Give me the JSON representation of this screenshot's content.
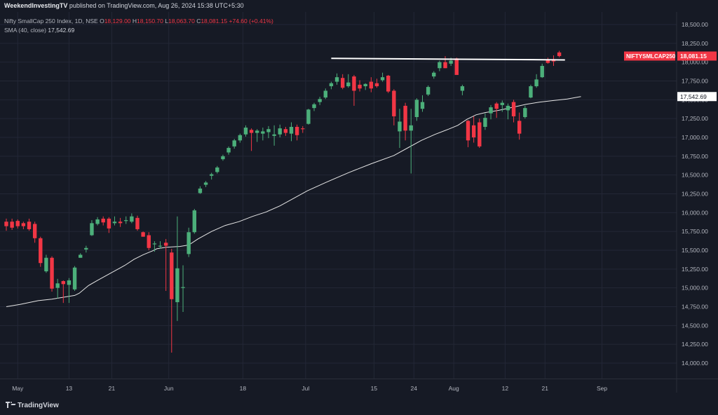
{
  "header": {
    "publisher": "WeekendInvestingTV",
    "published_text": "published on TradingView.com, Aug 26, 2024 15:38 UTC+5:30"
  },
  "legend": {
    "symbol_line": "Nifty SmallCap 250 Index, 1D, NSE",
    "o_label": "O",
    "o_value": "18,129.00",
    "h_label": "H",
    "h_value": "18,150.70",
    "l_label": "L",
    "l_value": "18,063.70",
    "c_label": "C",
    "c_value": "18,081.15",
    "change": "+74.60 (+0.41%)",
    "sma_label": "SMA (40, close)",
    "sma_value": "17,542.69"
  },
  "footer": {
    "brand": "TradingView"
  },
  "colors": {
    "background": "#161a25",
    "up": "#4caf7a",
    "down": "#f23645",
    "sma": "#e6e6e6",
    "grid": "#232736",
    "axis_text": "#b2b5be",
    "trendline": "#ffffff"
  },
  "chart_data": {
    "type": "candlestick",
    "y_ticks": [
      "18,500.00",
      "18,250.00",
      "18,000.00",
      "17,750.00",
      "17,500.00",
      "17,250.00",
      "17,000.00",
      "16,750.00",
      "16,500.00",
      "16,250.00",
      "16,000.00",
      "15,750.00",
      "15,500.00",
      "15,250.00",
      "15,000.00",
      "14,750.00",
      "14,500.00",
      "14,250.00",
      "14,000.00"
    ],
    "y_tick_values": [
      18500,
      18250,
      18000,
      17750,
      17500,
      17250,
      17000,
      16750,
      16500,
      16250,
      16000,
      15750,
      15500,
      15250,
      15000,
      14750,
      14500,
      14250,
      14000
    ],
    "ylim": [
      13800,
      18600
    ],
    "x_ticks": [
      "May",
      "13",
      "21",
      "Jun",
      "18",
      "Jul",
      "15",
      "24",
      "Aug",
      "12",
      "21",
      "Sep"
    ],
    "x_tick_index": [
      2,
      11,
      18.5,
      28.5,
      41.5,
      52.5,
      64.5,
      71.5,
      78.5,
      87.5,
      94.5,
      104.5
    ],
    "grid": true,
    "price_label": {
      "symbol": "NIFTYSMLCAP250",
      "value": "18,081.15",
      "price": 18081.15
    },
    "sma_label": {
      "value": "17,542.69",
      "price": 17542.69
    },
    "trendline": {
      "start_index": 57,
      "end_index": 98,
      "start_price": 18050,
      "end_price": 18030
    },
    "candles": [
      {
        "o": 15880,
        "h": 15920,
        "l": 15760,
        "c": 15820
      },
      {
        "o": 15880,
        "h": 15920,
        "l": 15770,
        "c": 15800
      },
      {
        "o": 15890,
        "h": 15910,
        "l": 15790,
        "c": 15820
      },
      {
        "o": 15860,
        "h": 15880,
        "l": 15780,
        "c": 15820
      },
      {
        "o": 15880,
        "h": 15920,
        "l": 15760,
        "c": 15780
      },
      {
        "o": 15850,
        "h": 15880,
        "l": 15600,
        "c": 15660
      },
      {
        "o": 15660,
        "h": 15680,
        "l": 15280,
        "c": 15330
      },
      {
        "o": 15220,
        "h": 15440,
        "l": 15200,
        "c": 15400
      },
      {
        "o": 15400,
        "h": 15420,
        "l": 14950,
        "c": 14990
      },
      {
        "o": 15000,
        "h": 15120,
        "l": 14860,
        "c": 15060
      },
      {
        "o": 15090,
        "h": 15100,
        "l": 14800,
        "c": 15050
      },
      {
        "o": 15040,
        "h": 15130,
        "l": 14800,
        "c": 15100
      },
      {
        "o": 14980,
        "h": 15290,
        "l": 14960,
        "c": 15270
      },
      {
        "o": 15400,
        "h": 15460,
        "l": 15400,
        "c": 15440
      },
      {
        "o": 15510,
        "h": 15560,
        "l": 15470,
        "c": 15530
      },
      {
        "o": 15700,
        "h": 15900,
        "l": 15690,
        "c": 15860
      },
      {
        "o": 15850,
        "h": 15940,
        "l": 15830,
        "c": 15910
      },
      {
        "o": 15920,
        "h": 15950,
        "l": 15830,
        "c": 15870
      },
      {
        "o": 15920,
        "h": 15940,
        "l": 15730,
        "c": 15790
      },
      {
        "o": 15860,
        "h": 15950,
        "l": 15830,
        "c": 15880
      },
      {
        "o": 15880,
        "h": 15930,
        "l": 15810,
        "c": 15860
      },
      {
        "o": 15890,
        "h": 15950,
        "l": 15850,
        "c": 15900
      },
      {
        "o": 15880,
        "h": 15990,
        "l": 15860,
        "c": 15950
      },
      {
        "o": 15930,
        "h": 15960,
        "l": 15760,
        "c": 15780
      },
      {
        "o": 15740,
        "h": 15750,
        "l": 15680,
        "c": 15680
      },
      {
        "o": 15700,
        "h": 15740,
        "l": 15500,
        "c": 15530
      },
      {
        "o": 15580,
        "h": 15620,
        "l": 15480,
        "c": 15590
      },
      {
        "o": 15560,
        "h": 15620,
        "l": 15520,
        "c": 15560
      },
      {
        "o": 15600,
        "h": 15650,
        "l": 14960,
        "c": 15560
      },
      {
        "o": 15470,
        "h": 15520,
        "l": 14140,
        "c": 14850
      },
      {
        "o": 14810,
        "h": 15950,
        "l": 14560,
        "c": 15260
      },
      {
        "o": 15000,
        "h": 15300,
        "l": 14680,
        "c": 15010
      },
      {
        "o": 15450,
        "h": 15800,
        "l": 15410,
        "c": 15740
      },
      {
        "o": 15740,
        "h": 16050,
        "l": 15720,
        "c": 16030
      },
      {
        "o": 16260,
        "h": 16350,
        "l": 16250,
        "c": 16320
      },
      {
        "o": 16370,
        "h": 16420,
        "l": 16340,
        "c": 16400
      },
      {
        "o": 16490,
        "h": 16530,
        "l": 16440,
        "c": 16510
      },
      {
        "o": 16540,
        "h": 16620,
        "l": 16520,
        "c": 16600
      },
      {
        "o": 16710,
        "h": 16770,
        "l": 16690,
        "c": 16750
      },
      {
        "o": 16800,
        "h": 16880,
        "l": 16770,
        "c": 16860
      },
      {
        "o": 16880,
        "h": 16980,
        "l": 16850,
        "c": 16960
      },
      {
        "o": 16960,
        "h": 17050,
        "l": 16930,
        "c": 17030
      },
      {
        "o": 17040,
        "h": 17160,
        "l": 17010,
        "c": 17130
      },
      {
        "o": 17100,
        "h": 17120,
        "l": 16820,
        "c": 17060
      },
      {
        "o": 17060,
        "h": 17110,
        "l": 16940,
        "c": 17090
      },
      {
        "o": 17050,
        "h": 17130,
        "l": 16960,
        "c": 17080
      },
      {
        "o": 17070,
        "h": 17150,
        "l": 16990,
        "c": 17110
      },
      {
        "o": 17020,
        "h": 17160,
        "l": 16890,
        "c": 17040
      },
      {
        "o": 17040,
        "h": 17170,
        "l": 17000,
        "c": 17120
      },
      {
        "o": 17110,
        "h": 17140,
        "l": 17020,
        "c": 17060
      },
      {
        "o": 17050,
        "h": 17200,
        "l": 16950,
        "c": 17140
      },
      {
        "o": 17140,
        "h": 17170,
        "l": 16960,
        "c": 17030
      },
      {
        "o": 17120,
        "h": 17150,
        "l": 17060,
        "c": 17110
      },
      {
        "o": 17180,
        "h": 17380,
        "l": 17170,
        "c": 17370
      },
      {
        "o": 17390,
        "h": 17460,
        "l": 17350,
        "c": 17440
      },
      {
        "o": 17470,
        "h": 17540,
        "l": 17430,
        "c": 17510
      },
      {
        "o": 17530,
        "h": 17650,
        "l": 17510,
        "c": 17620
      },
      {
        "o": 17680,
        "h": 17740,
        "l": 17640,
        "c": 17720
      },
      {
        "o": 17740,
        "h": 17850,
        "l": 17700,
        "c": 17800
      },
      {
        "o": 17790,
        "h": 17840,
        "l": 17640,
        "c": 17660
      },
      {
        "o": 17680,
        "h": 17840,
        "l": 17660,
        "c": 17730
      },
      {
        "o": 17810,
        "h": 17830,
        "l": 17420,
        "c": 17620
      },
      {
        "o": 17700,
        "h": 17760,
        "l": 17610,
        "c": 17650
      },
      {
        "o": 17680,
        "h": 17720,
        "l": 17630,
        "c": 17710
      },
      {
        "o": 17740,
        "h": 17800,
        "l": 17600,
        "c": 17650
      },
      {
        "o": 17720,
        "h": 17780,
        "l": 17660,
        "c": 17680
      },
      {
        "o": 17760,
        "h": 17860,
        "l": 17740,
        "c": 17800
      },
      {
        "o": 17820,
        "h": 17830,
        "l": 17590,
        "c": 17610
      },
      {
        "o": 17620,
        "h": 17640,
        "l": 17160,
        "c": 17280
      },
      {
        "o": 17080,
        "h": 17380,
        "l": 16860,
        "c": 17210
      },
      {
        "o": 17420,
        "h": 17460,
        "l": 16960,
        "c": 17090
      },
      {
        "o": 17090,
        "h": 17380,
        "l": 16520,
        "c": 17160
      },
      {
        "o": 17270,
        "h": 17520,
        "l": 17220,
        "c": 17500
      },
      {
        "o": 17380,
        "h": 17560,
        "l": 17340,
        "c": 17470
      },
      {
        "o": 17570,
        "h": 17690,
        "l": 17550,
        "c": 17670
      },
      {
        "o": 17810,
        "h": 17880,
        "l": 17780,
        "c": 17860
      },
      {
        "o": 17920,
        "h": 18020,
        "l": 17880,
        "c": 18000
      },
      {
        "o": 18000,
        "h": 18080,
        "l": 17920,
        "c": 17920
      },
      {
        "o": 17980,
        "h": 18060,
        "l": 17950,
        "c": 18020
      },
      {
        "o": 18050,
        "h": 18060,
        "l": 17850,
        "c": 17830
      },
      {
        "o": 17620,
        "h": 17700,
        "l": 17560,
        "c": 17680
      },
      {
        "o": 17220,
        "h": 17230,
        "l": 16870,
        "c": 16960
      },
      {
        "o": 17160,
        "h": 17280,
        "l": 16930,
        "c": 17000
      },
      {
        "o": 17200,
        "h": 17250,
        "l": 16860,
        "c": 16880
      },
      {
        "o": 17140,
        "h": 17320,
        "l": 17100,
        "c": 17260
      },
      {
        "o": 17320,
        "h": 17430,
        "l": 17240,
        "c": 17400
      },
      {
        "o": 17450,
        "h": 17470,
        "l": 17260,
        "c": 17380
      },
      {
        "o": 17430,
        "h": 17490,
        "l": 17340,
        "c": 17460
      },
      {
        "o": 17360,
        "h": 17450,
        "l": 17240,
        "c": 17420
      },
      {
        "o": 17470,
        "h": 17500,
        "l": 17200,
        "c": 17280
      },
      {
        "o": 17220,
        "h": 17330,
        "l": 16970,
        "c": 17050
      },
      {
        "o": 17270,
        "h": 17420,
        "l": 17250,
        "c": 17390
      },
      {
        "o": 17530,
        "h": 17700,
        "l": 17520,
        "c": 17680
      },
      {
        "o": 17680,
        "h": 17840,
        "l": 17660,
        "c": 17770
      },
      {
        "o": 17800,
        "h": 17980,
        "l": 17790,
        "c": 17950
      },
      {
        "o": 18030,
        "h": 18060,
        "l": 17980,
        "c": 17990
      },
      {
        "o": 18040,
        "h": 18090,
        "l": 17950,
        "c": 18010
      },
      {
        "o": 18129,
        "h": 18150.7,
        "l": 18063.7,
        "c": 18081.15
      }
    ],
    "sma": [
      [
        0,
        14750
      ],
      [
        6,
        14780
      ],
      [
        14,
        14830
      ],
      [
        20,
        14850
      ],
      [
        26,
        14880
      ],
      [
        30,
        14900
      ],
      [
        32,
        14930
      ],
      [
        36,
        15030
      ],
      [
        40,
        15100
      ],
      [
        46,
        15200
      ],
      [
        52,
        15300
      ],
      [
        56,
        15380
      ],
      [
        60,
        15440
      ],
      [
        64,
        15490
      ],
      [
        66,
        15520
      ],
      [
        70,
        15540
      ],
      [
        76,
        15550
      ],
      [
        80,
        15570
      ],
      [
        84,
        15650
      ],
      [
        90,
        15750
      ],
      [
        96,
        15830
      ],
      [
        102,
        15880
      ],
      [
        108,
        15950
      ],
      [
        114,
        16010
      ],
      [
        120,
        16090
      ],
      [
        126,
        16190
      ],
      [
        132,
        16290
      ],
      [
        140,
        16400
      ],
      [
        150,
        16530
      ],
      [
        160,
        16650
      ],
      [
        170,
        16760
      ],
      [
        176,
        16860
      ],
      [
        182,
        16960
      ],
      [
        188,
        17040
      ],
      [
        194,
        17110
      ],
      [
        198,
        17160
      ],
      [
        202,
        17240
      ],
      [
        206,
        17300
      ],
      [
        210,
        17330
      ],
      [
        216,
        17360
      ],
      [
        222,
        17400
      ],
      [
        228,
        17440
      ],
      [
        234,
        17470
      ],
      [
        240,
        17490
      ],
      [
        246,
        17510
      ],
      [
        252,
        17542.69
      ]
    ]
  }
}
